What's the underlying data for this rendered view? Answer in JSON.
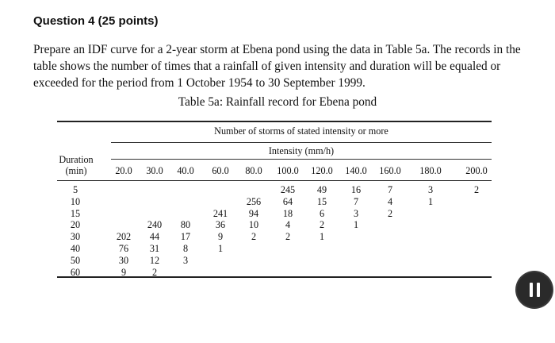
{
  "question": {
    "title": "Question 4 (25 points)"
  },
  "prompt": "Prepare an IDF curve for a 2-year storm at Ebena pond using the data in Table 5a. The records in the table shows the number of times that a rainfall of given intensity and duration will be equaled or exceeded for the period from 1 October 1954 to 30 September 1999.",
  "table": {
    "caption": "Table 5a: Rainfall record for Ebena pond",
    "group_header": "Number of storms of stated intensity or more",
    "intensity_header": "Intensity (mm/h)",
    "duration_label_1": "Duration",
    "duration_label_2": "(min)",
    "intensities": [
      "20.0",
      "30.0",
      "40.0",
      "60.0",
      "80.0",
      "100.0",
      "120.0",
      "140.0",
      "160.0",
      "180.0",
      "200.0"
    ],
    "durations": [
      "5",
      "10",
      "15",
      "20",
      "30",
      "40",
      "50",
      "60"
    ],
    "rows": [
      [
        "",
        "",
        "",
        "",
        "",
        "245",
        "49",
        "16",
        "7",
        "3",
        "2"
      ],
      [
        "",
        "",
        "",
        "",
        "256",
        "64",
        "15",
        "7",
        "4",
        "1",
        ""
      ],
      [
        "",
        "",
        "",
        "241",
        "94",
        "18",
        "6",
        "3",
        "2",
        "",
        ""
      ],
      [
        "",
        "240",
        "80",
        "36",
        "10",
        "4",
        "2",
        "1",
        "",
        "",
        ""
      ],
      [
        "202",
        "44",
        "17",
        "9",
        "2",
        "2",
        "1",
        "",
        "",
        "",
        ""
      ],
      [
        "76",
        "31",
        "8",
        "1",
        "",
        "",
        "",
        "",
        "",
        "",
        ""
      ],
      [
        "30",
        "12",
        "3",
        "",
        "",
        "",
        "",
        "",
        "",
        "",
        ""
      ],
      [
        "9",
        "2",
        "",
        "",
        "",
        "",
        "",
        "",
        "",
        "",
        ""
      ]
    ]
  }
}
